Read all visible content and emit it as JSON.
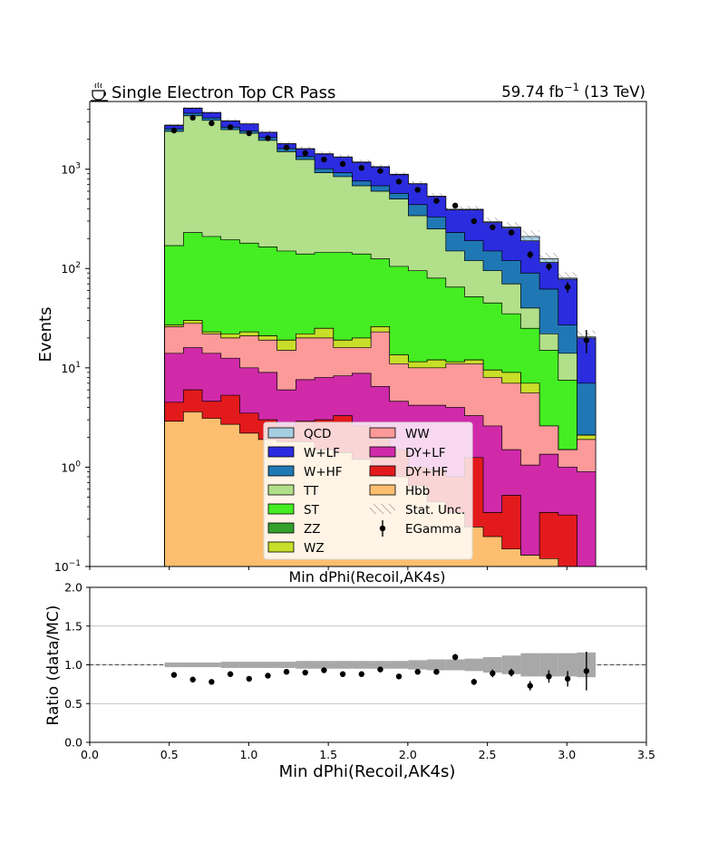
{
  "chart_data": [
    {
      "type": "area",
      "title": "Single Electron Top CR Pass",
      "title_icon": "coffee-icon",
      "lumi_label": "59.74 fb",
      "lumi_exp": "−1",
      "lumi_energy": " (13 TeV)",
      "xlabel": "Min dPhi(Recoil,AK4s)",
      "ylabel": "Events",
      "yscale": "log",
      "ylim": [
        0.1,
        4800
      ],
      "xlim": [
        0.0,
        3.5
      ],
      "bin_edges": [
        0.471,
        0.589,
        0.707,
        0.825,
        0.943,
        1.061,
        1.178,
        1.296,
        1.414,
        1.532,
        1.65,
        1.768,
        1.885,
        2.003,
        2.121,
        2.239,
        2.357,
        2.474,
        2.592,
        2.71,
        2.828,
        2.946,
        3.064,
        3.181
      ],
      "y_ticks": [
        {
          "value": 0.1,
          "label": "10",
          "exp": "−1"
        },
        {
          "value": 1,
          "label": "10",
          "exp": "0"
        },
        {
          "value": 10,
          "label": "10",
          "exp": "1"
        },
        {
          "value": 100,
          "label": "10",
          "exp": "2"
        },
        {
          "value": 1000,
          "label": "10",
          "exp": "3"
        }
      ],
      "stack": [
        {
          "name": "Hbb",
          "color": "#FDBF6F",
          "values": [
            2.9,
            3.6,
            3.1,
            2.7,
            2.2,
            1.9,
            1.8,
            1.8,
            1.5,
            1.4,
            1.2,
            0.95,
            0.8,
            0.65,
            0.45,
            0.35,
            0.25,
            0.2,
            0.15,
            0.13,
            0.12,
            0.1,
            0.09
          ]
        },
        {
          "name": "DY+HF",
          "color": "#E31A1C",
          "values": [
            4.5,
            6.0,
            4.6,
            5.3,
            3.5,
            3.0,
            2.6,
            2.9,
            3.0,
            3.3,
            2.6,
            2.2,
            1.5,
            1.0,
            0.95,
            0.8,
            1.25,
            0.35,
            0.52,
            0.13,
            0.35,
            0.33,
            0.09
          ]
        },
        {
          "name": "DY+LF",
          "color": "#D02AA9",
          "values": [
            14,
            16,
            14,
            12.5,
            10,
            9,
            6,
            7.6,
            8,
            8.3,
            8.8,
            6.5,
            4.6,
            4.2,
            4.2,
            4.0,
            3.3,
            2.6,
            1.5,
            1.05,
            1.35,
            1.0,
            0.9
          ]
        },
        {
          "name": "WW",
          "color": "#FB9A99",
          "values": [
            26,
            28,
            22,
            20,
            21,
            19,
            15,
            20,
            20,
            16,
            16,
            23,
            11,
            10,
            10,
            11,
            11,
            8,
            7,
            5.6,
            2.6,
            1.5,
            1.9
          ]
        },
        {
          "name": "WZ",
          "color": "#C8DE29",
          "values": [
            27,
            30,
            23,
            22,
            23,
            21,
            19,
            22,
            25,
            19,
            20,
            26,
            13.5,
            11.5,
            12,
            11.5,
            12,
            9.5,
            9,
            7,
            2.6,
            1.5,
            2.1
          ]
        },
        {
          "name": "ZZ",
          "color": "#33A02C",
          "values": [
            27,
            30,
            23,
            22,
            23,
            21,
            19,
            22,
            25,
            19,
            20,
            26,
            13.5,
            11.5,
            12,
            11.5,
            12,
            9.5,
            9,
            7,
            2.6,
            1.5,
            2.1
          ]
        },
        {
          "name": "ST",
          "color": "#44EE22",
          "values": [
            170,
            230,
            210,
            195,
            180,
            165,
            150,
            140,
            145,
            145,
            140,
            125,
            105,
            95,
            80,
            65,
            52,
            45,
            35,
            25,
            15,
            7.5,
            2.1
          ]
        },
        {
          "name": "TT",
          "color": "#B2DF8A",
          "values": [
            2400,
            3450,
            3100,
            2500,
            2300,
            1950,
            1500,
            1250,
            920,
            840,
            680,
            600,
            500,
            340,
            250,
            150,
            120,
            95,
            70,
            40,
            22,
            14,
            2.1
          ]
        },
        {
          "name": "W+HF",
          "color": "#1F78B4",
          "values": [
            2550,
            3650,
            3280,
            2650,
            2430,
            2080,
            1610,
            1340,
            1010,
            920,
            760,
            680,
            570,
            440,
            330,
            230,
            190,
            150,
            120,
            90,
            62,
            27,
            7
          ]
        },
        {
          "name": "W+LF",
          "color": "#2B2BE0",
          "values": [
            2750,
            4100,
            3700,
            3050,
            2850,
            2350,
            1800,
            1600,
            1420,
            1320,
            1170,
            1050,
            880,
            710,
            530,
            390,
            390,
            290,
            255,
            190,
            115,
            78,
            20
          ]
        },
        {
          "name": "QCD",
          "color": "#A6CEE3",
          "values": [
            2780,
            4120,
            3720,
            3070,
            2860,
            2360,
            1810,
            1610,
            1430,
            1330,
            1180,
            1060,
            890,
            715,
            535,
            395,
            395,
            295,
            262,
            210,
            125,
            80,
            20.5
          ]
        }
      ],
      "unc_rel": [
        0.03,
        0.03,
        0.03,
        0.04,
        0.04,
        0.04,
        0.04,
        0.05,
        0.05,
        0.05,
        0.05,
        0.05,
        0.05,
        0.06,
        0.07,
        0.07,
        0.08,
        0.1,
        0.12,
        0.15,
        0.15,
        0.15,
        0.16
      ],
      "data": {
        "name": "EGamma",
        "x": [
          0.53,
          0.648,
          0.766,
          0.884,
          1.002,
          1.12,
          1.237,
          1.355,
          1.473,
          1.591,
          1.709,
          1.827,
          1.944,
          2.062,
          2.18,
          2.298,
          2.416,
          2.533,
          2.651,
          2.769,
          2.887,
          3.005,
          3.123
        ],
        "y": [
          2450,
          3300,
          2900,
          2650,
          2300,
          2050,
          1650,
          1450,
          1250,
          1130,
          1030,
          960,
          750,
          620,
          480,
          430,
          300,
          260,
          230,
          138,
          105,
          65,
          19
        ],
        "err": [
          50,
          57,
          54,
          51,
          48,
          45,
          41,
          38,
          35,
          34,
          32,
          31,
          27,
          25,
          22,
          21,
          17,
          16,
          15,
          12,
          10,
          8,
          5
        ]
      },
      "legend": [
        {
          "name": "QCD",
          "kind": "box",
          "color": "#A6CEE3"
        },
        {
          "name": "WW",
          "kind": "box",
          "color": "#FB9A99"
        },
        {
          "name": "W+LF",
          "kind": "box",
          "color": "#2B2BE0"
        },
        {
          "name": "DY+LF",
          "kind": "box",
          "color": "#D02AA9"
        },
        {
          "name": "W+HF",
          "kind": "box",
          "color": "#1F78B4"
        },
        {
          "name": "DY+HF",
          "kind": "box",
          "color": "#E31A1C"
        },
        {
          "name": "TT",
          "kind": "box",
          "color": "#B2DF8A"
        },
        {
          "name": "Hbb",
          "kind": "box",
          "color": "#FDBF6F"
        },
        {
          "name": "ST",
          "kind": "box",
          "color": "#44EE22"
        },
        {
          "name": "Stat. Unc.",
          "kind": "hatch",
          "color": "#888888"
        },
        {
          "name": "ZZ",
          "kind": "box",
          "color": "#33A02C"
        },
        {
          "name": "EGamma",
          "kind": "point",
          "color": "#000000"
        },
        {
          "name": "WZ",
          "kind": "box",
          "color": "#C8DE29"
        }
      ],
      "legend_placement": "lower-center",
      "grid": false
    },
    {
      "type": "scatter",
      "xlabel": "Min dPhi(Recoil,AK4s)",
      "ylabel": "Ratio (data/MC)",
      "xlim": [
        0.0,
        3.5
      ],
      "ylim": [
        0.0,
        2.0
      ],
      "x_ticks": [
        "0.0",
        "0.5",
        "1.0",
        "1.5",
        "2.0",
        "2.5",
        "3.0",
        "3.5"
      ],
      "y_ticks": [
        "0.0",
        "0.5",
        "1.0",
        "1.5",
        "2.0"
      ],
      "reference_line": 1.0,
      "grid": true,
      "ratio": {
        "x": [
          0.53,
          0.648,
          0.766,
          0.884,
          1.002,
          1.12,
          1.237,
          1.355,
          1.473,
          1.591,
          1.709,
          1.827,
          1.944,
          2.062,
          2.18,
          2.298,
          2.416,
          2.533,
          2.651,
          2.769,
          2.887,
          3.005,
          3.123
        ],
        "y": [
          0.87,
          0.81,
          0.78,
          0.88,
          0.82,
          0.86,
          0.91,
          0.9,
          0.93,
          0.88,
          0.88,
          0.94,
          0.85,
          0.91,
          0.91,
          1.1,
          0.78,
          0.89,
          0.9,
          0.73,
          0.85,
          0.82,
          0.92
        ],
        "err": [
          0.02,
          0.02,
          0.02,
          0.02,
          0.02,
          0.02,
          0.02,
          0.02,
          0.02,
          0.02,
          0.02,
          0.02,
          0.02,
          0.02,
          0.03,
          0.04,
          0.04,
          0.05,
          0.05,
          0.06,
          0.08,
          0.1,
          0.25
        ]
      }
    }
  ]
}
